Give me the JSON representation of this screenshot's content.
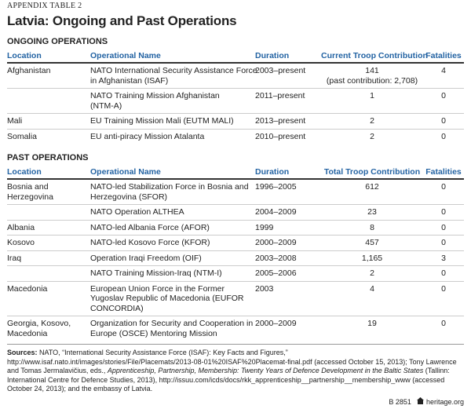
{
  "header": {
    "label": "APPENDIX TABLE 2",
    "title": "Latvia: Ongoing and Past Operations"
  },
  "sections": [
    {
      "title": "ONGOING OPERATIONS",
      "columns": [
        "Location",
        "Operational Name",
        "Duration",
        "Current Troop Contribution",
        "Fatalities"
      ],
      "rows": [
        [
          "Afghanistan",
          [
            "NATO International Security Assistance Force",
            "in Afghanistan (ISAF)"
          ],
          "2003–present",
          [
            "141",
            "(past contribution: 2,708)"
          ],
          "4"
        ],
        [
          null,
          [
            "NATO Training Mission Afghanistan",
            "(NTM-A)"
          ],
          "2011–present",
          "1",
          "0"
        ],
        [
          "Mali",
          "EU Training Mission Mali (EUTM MALI)",
          "2013–present",
          "2",
          "0"
        ],
        [
          "Somalia",
          "EU anti-piracy Mission Atalanta",
          "2010–present",
          "2",
          "0"
        ]
      ]
    },
    {
      "title": "PAST OPERATIONS",
      "columns": [
        "Location",
        "Operational Name",
        "Duration",
        "Total Troop Contribution",
        "Fatalities"
      ],
      "rows": [
        [
          [
            "Bosnia and",
            "Herzegovina"
          ],
          [
            "NATO-led Stabilization Force in Bosnia and",
            "Herzegovina (SFOR)"
          ],
          "1996–2005",
          "612",
          "0"
        ],
        [
          null,
          "NATO Operation ALTHEA",
          "2004–2009",
          "23",
          "0"
        ],
        [
          "Albania",
          "NATO-led Albania Force  (AFOR)",
          "1999",
          "8",
          "0"
        ],
        [
          "Kosovo",
          "NATO-led Kosovo Force (KFOR)",
          "2000–2009",
          "457",
          "0"
        ],
        [
          "Iraq",
          "Operation Iraqi Freedom (OIF)",
          "2003–2008",
          "1,165",
          "3"
        ],
        [
          null,
          "NATO Training Mission-Iraq (NTM-I)",
          "2005–2006",
          "2",
          "0"
        ],
        [
          "Macedonia",
          [
            "European Union Force in the Former",
            "Yugoslav Republic of Macedonia (EUFOR",
            "CONCORDIA)"
          ],
          "2003",
          "4",
          "0"
        ],
        [
          [
            "Georgia, Kosovo,",
            "Macedonia"
          ],
          [
            "Organization for Security and Cooperation in",
            "Europe (OSCE) Mentoring Mission"
          ],
          "2000–2009",
          "19",
          "0"
        ]
      ]
    }
  ],
  "sources": {
    "label": "Sources:",
    "parts": [
      {
        "text": " NATO, “International Security Assistance Force (ISAF): Key Facts and Figures,” http://www.isaf.nato.int/images/stories/File/Placemats/2013-08-01%20ISAF%20Placemat-final.pdf (accessed October 15, 2013); Tony Lawrence and Tomas Jermalavičius, eds., ",
        "italic": false
      },
      {
        "text": "Apprenticeship, Partnership, Membership: Twenty Years of Defence Development in the Baltic States",
        "italic": true
      },
      {
        "text": " (Tallinn: International Centre for Defence Studies, 2013), http://issuu.com/icds/docs/rkk_apprenticeship__partnership__membership_www (accessed October 24, 2013); and the embassy of Latvia.",
        "italic": false
      }
    ]
  },
  "footer": {
    "code": "B 2851",
    "site": "heritage.org"
  }
}
